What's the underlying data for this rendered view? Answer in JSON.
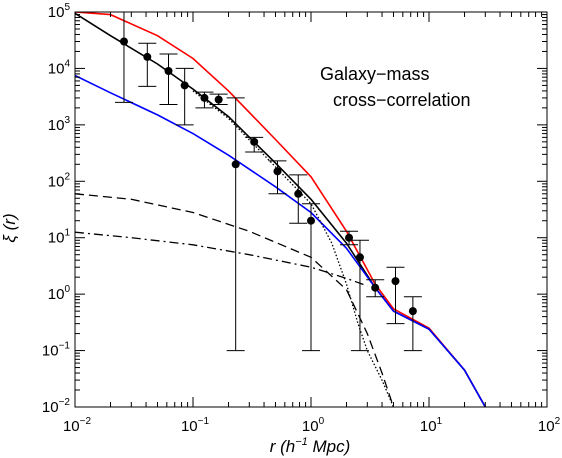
{
  "chart_data": {
    "type": "line",
    "xscale": "log",
    "yscale": "log",
    "xlim": [
      0.01,
      100
    ],
    "ylim": [
      0.01,
      100000
    ],
    "xlabel": {
      "base": "r (h",
      "exp": "−1",
      "rest": " Mpc)"
    },
    "ylabel": "ξ (r)",
    "xticks": [
      {
        "value": 0.01,
        "base": "10",
        "exp": "−2"
      },
      {
        "value": 0.1,
        "base": "10",
        "exp": "−1"
      },
      {
        "value": 1,
        "base": "10",
        "exp": "0"
      },
      {
        "value": 10,
        "base": "10",
        "exp": "1"
      },
      {
        "value": 100,
        "base": "10",
        "exp": "2"
      }
    ],
    "yticks": [
      {
        "value": 0.01,
        "base": "10",
        "exp": "−2"
      },
      {
        "value": 0.1,
        "base": "10",
        "exp": "−1"
      },
      {
        "value": 1,
        "base": "10",
        "exp": "0"
      },
      {
        "value": 10,
        "base": "10",
        "exp": "1"
      },
      {
        "value": 100,
        "base": "10",
        "exp": "2"
      },
      {
        "value": 1000,
        "base": "10",
        "exp": "3"
      },
      {
        "value": 10000,
        "base": "10",
        "exp": "4"
      },
      {
        "value": 100000,
        "base": "10",
        "exp": "5"
      }
    ],
    "annotation": [
      "Galaxy−mass",
      "cross−correlation"
    ],
    "colors": {
      "red": "#ff0000",
      "blue": "#0000ff",
      "black": "#000000"
    },
    "series": [
      {
        "style": "solid",
        "color": "#ff0000",
        "x": [
          0.01,
          0.02,
          0.05,
          0.1,
          0.2,
          0.5,
          1,
          2,
          3.5,
          5,
          10,
          20,
          30
        ],
        "y": [
          100000,
          90000,
          38000,
          15000,
          4000,
          550,
          120,
          13,
          1.5,
          0.55,
          0.25,
          0.045,
          0.01
        ]
      },
      {
        "style": "solid",
        "color": "#000000",
        "x": [
          0.01,
          0.02,
          0.05,
          0.1,
          0.2,
          0.5,
          1,
          2,
          3.5,
          5,
          10,
          20,
          30
        ],
        "y": [
          95000,
          38000,
          12000,
          4300,
          1400,
          210,
          48,
          8,
          1.3,
          0.5,
          0.24,
          0.045,
          0.01
        ]
      },
      {
        "style": "solid",
        "color": "#0000ff",
        "x": [
          0.01,
          0.02,
          0.05,
          0.1,
          0.2,
          0.5,
          1,
          2,
          3.5,
          5,
          10,
          20,
          30
        ],
        "y": [
          7500,
          3700,
          1500,
          700,
          290,
          80,
          28,
          6.5,
          1.3,
          0.5,
          0.24,
          0.045,
          0.01
        ]
      },
      {
        "style": "dotted",
        "color": "#000000",
        "x": [
          0.1,
          0.2,
          0.5,
          1,
          1.5,
          2,
          2.5,
          3,
          4,
          5
        ],
        "y": [
          4000,
          1300,
          180,
          40,
          8,
          1.5,
          0.3,
          0.1,
          0.03,
          0.01
        ]
      },
      {
        "style": "dashed",
        "color": "#000000",
        "x": [
          0.01,
          0.03,
          0.1,
          0.3,
          1,
          2,
          3,
          4,
          5
        ],
        "y": [
          60,
          48,
          28,
          13,
          4.5,
          1.2,
          0.2,
          0.04,
          0.01
        ]
      },
      {
        "style": "dashdot",
        "color": "#000000",
        "x": [
          0.01,
          0.03,
          0.1,
          0.3,
          1,
          2,
          3
        ],
        "y": [
          12.5,
          10,
          7.5,
          5,
          3,
          1.9,
          1.4
        ]
      }
    ],
    "points": [
      {
        "x": 0.026,
        "y": 30000,
        "ylo": 2500,
        "yhi": 100000
      },
      {
        "x": 0.041,
        "y": 16000,
        "ylo": 4800,
        "yhi": 28000
      },
      {
        "x": 0.062,
        "y": 9000,
        "ylo": 2300,
        "yhi": 18000
      },
      {
        "x": 0.085,
        "y": 5000,
        "ylo": 1000,
        "yhi": 10000
      },
      {
        "x": 0.125,
        "y": 3000,
        "ylo": 2000,
        "yhi": 3800
      },
      {
        "x": 0.165,
        "y": 2800,
        "ylo": 2300,
        "yhi": 3500
      },
      {
        "x": 0.23,
        "y": 200,
        "ylo": 0.1,
        "yhi": 3000
      },
      {
        "x": 0.33,
        "y": 500,
        "ylo": 330,
        "yhi": 600
      },
      {
        "x": 0.52,
        "y": 150,
        "ylo": 60,
        "yhi": 230
      },
      {
        "x": 0.78,
        "y": 60,
        "ylo": 18,
        "yhi": 130
      },
      {
        "x": 1.0,
        "y": 20,
        "ylo": 0.1,
        "yhi": 40
      },
      {
        "x": 2.1,
        "y": 10,
        "ylo": 7.5,
        "yhi": 13
      },
      {
        "x": 2.6,
        "y": 4.5,
        "ylo": 0.1,
        "yhi": 9
      },
      {
        "x": 3.5,
        "y": 1.3,
        "ylo": 0.9,
        "yhi": 1.8
      },
      {
        "x": 5.2,
        "y": 1.7,
        "ylo": 0.3,
        "yhi": 3
      },
      {
        "x": 7.3,
        "y": 0.5,
        "ylo": 0.1,
        "yhi": 0.9
      }
    ]
  }
}
